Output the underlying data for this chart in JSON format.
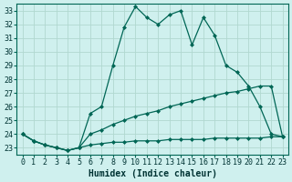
{
  "title": "",
  "xlabel": "Humidex (Indice chaleur)",
  "background_color": "#cff0ee",
  "grid_color": "#b0d8d0",
  "line_color": "#006655",
  "xlim": [
    -0.5,
    23.5
  ],
  "ylim": [
    22.5,
    33.5
  ],
  "xticks": [
    0,
    1,
    2,
    3,
    4,
    5,
    6,
    7,
    8,
    9,
    10,
    11,
    12,
    13,
    14,
    15,
    16,
    17,
    18,
    19,
    20,
    21,
    22,
    23
  ],
  "yticks": [
    23,
    24,
    25,
    26,
    27,
    28,
    29,
    30,
    31,
    32,
    33
  ],
  "series1_x": [
    0,
    1,
    2,
    3,
    4,
    5,
    6,
    7,
    8,
    9,
    10,
    11,
    12,
    13,
    14,
    15,
    16,
    17,
    18,
    19,
    20,
    21,
    22,
    23
  ],
  "series1_y": [
    24.0,
    23.5,
    23.2,
    23.0,
    22.8,
    23.0,
    25.5,
    26.0,
    29.0,
    31.8,
    33.3,
    32.5,
    32.0,
    32.7,
    33.0,
    30.5,
    32.5,
    31.2,
    29.0,
    28.5,
    27.5,
    26.0,
    24.0,
    23.8
  ],
  "series2_x": [
    0,
    1,
    2,
    3,
    4,
    5,
    6,
    7,
    8,
    9,
    10,
    11,
    12,
    13,
    14,
    15,
    16,
    17,
    18,
    19,
    20,
    21,
    22,
    23
  ],
  "series2_y": [
    24.0,
    23.5,
    23.2,
    23.0,
    22.8,
    23.0,
    24.0,
    24.3,
    24.7,
    25.0,
    25.3,
    25.5,
    25.7,
    26.0,
    26.2,
    26.4,
    26.6,
    26.8,
    27.0,
    27.1,
    27.3,
    27.5,
    27.5,
    23.8
  ],
  "series3_x": [
    0,
    1,
    2,
    3,
    4,
    5,
    6,
    7,
    8,
    9,
    10,
    11,
    12,
    13,
    14,
    15,
    16,
    17,
    18,
    19,
    20,
    21,
    22,
    23
  ],
  "series3_y": [
    24.0,
    23.5,
    23.2,
    23.0,
    22.8,
    23.0,
    23.2,
    23.3,
    23.4,
    23.4,
    23.5,
    23.5,
    23.5,
    23.6,
    23.6,
    23.6,
    23.6,
    23.7,
    23.7,
    23.7,
    23.7,
    23.7,
    23.8,
    23.8
  ],
  "font_size_label": 7,
  "font_size_tick": 6
}
